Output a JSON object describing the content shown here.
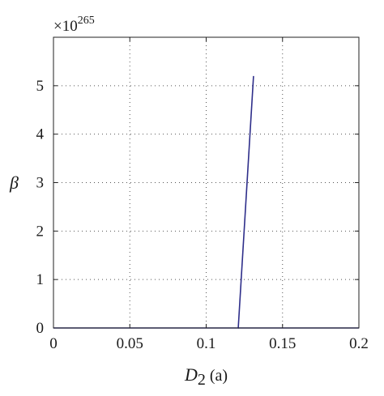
{
  "chart_data": {
    "type": "line",
    "title": "",
    "xlabel": {
      "symbol": "D",
      "subscript": "2",
      "suffix": " (a)"
    },
    "ylabel": "β",
    "y_multiplier": {
      "prefix": "×10",
      "exponent": "265"
    },
    "xlim": [
      0,
      0.2
    ],
    "ylim": [
      0,
      6
    ],
    "x_ticks": [
      0,
      0.05,
      0.1,
      0.15,
      0.2
    ],
    "x_tick_labels": [
      "0",
      "0.05",
      "0.1",
      "0.15",
      "0.2"
    ],
    "y_ticks": [
      0,
      1,
      2,
      3,
      4,
      5
    ],
    "y_tick_labels": [
      "0",
      "1",
      "2",
      "3",
      "4",
      "5"
    ],
    "grid": true,
    "grid_style": "dotted",
    "series": [
      {
        "color": "#2e2e8a",
        "x": [
          0,
          0.121,
          0.131
        ],
        "y": [
          0,
          0,
          5.2
        ]
      },
      {
        "color": "#2e2e8a",
        "x": [
          0.121,
          0.2
        ],
        "y": [
          0,
          0
        ]
      }
    ],
    "colors": {
      "line": "#2e2e8a",
      "axes": "#222222",
      "grid": "#555555"
    }
  }
}
